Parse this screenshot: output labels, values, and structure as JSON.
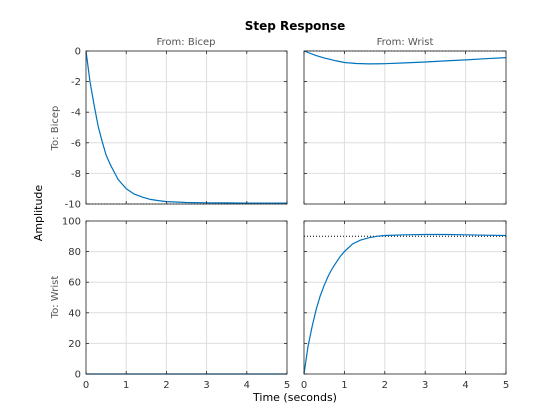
{
  "chart_data": {
    "type": "line",
    "title": "Step Response",
    "xlabel": "Time (seconds)",
    "ylabel": "Amplitude",
    "grid": true,
    "column_titles": [
      "From: Bicep",
      "From: Wrist"
    ],
    "row_titles": [
      "To: Bicep",
      "To: Wrist"
    ],
    "xlim": [
      0,
      5
    ],
    "xticks": [
      0,
      1,
      2,
      3,
      4,
      5
    ],
    "rows": [
      {
        "ylim": [
          -10,
          0
        ],
        "yticks": [
          -10,
          -8,
          -6,
          -4,
          -2,
          0
        ]
      },
      {
        "ylim": [
          0,
          100
        ],
        "yticks": [
          0,
          20,
          40,
          60,
          80,
          100
        ]
      }
    ],
    "line_color": "#0072bd",
    "panels": [
      {
        "row": 0,
        "col": 0,
        "x": [
          0,
          0.1,
          0.2,
          0.3,
          0.4,
          0.5,
          0.6,
          0.7,
          0.8,
          0.9,
          1.0,
          1.2,
          1.4,
          1.6,
          1.8,
          2.0,
          2.5,
          3.0,
          3.5,
          4.0,
          4.5,
          5.0
        ],
        "y": [
          0,
          -2.0,
          -3.5,
          -4.9,
          -5.9,
          -6.8,
          -7.4,
          -7.9,
          -8.4,
          -8.7,
          -9.0,
          -9.35,
          -9.55,
          -9.7,
          -9.78,
          -9.84,
          -9.9,
          -9.92,
          -9.93,
          -9.94,
          -9.94,
          -9.94
        ],
        "steady_state": -10
      },
      {
        "row": 0,
        "col": 1,
        "x": [
          0,
          0.1,
          0.3,
          0.5,
          0.8,
          1.0,
          1.3,
          1.6,
          2.0,
          2.5,
          3.0,
          3.5,
          4.0,
          4.5,
          5.0
        ],
        "y": [
          0,
          -0.1,
          -0.3,
          -0.45,
          -0.65,
          -0.75,
          -0.82,
          -0.84,
          -0.83,
          -0.78,
          -0.72,
          -0.65,
          -0.58,
          -0.5,
          -0.43
        ],
        "steady_state": 0
      },
      {
        "row": 1,
        "col": 0,
        "x": [
          0,
          1,
          2,
          3,
          4,
          5
        ],
        "y": [
          0,
          0,
          0,
          0,
          0,
          0
        ]
      },
      {
        "row": 1,
        "col": 1,
        "x": [
          0,
          0.1,
          0.2,
          0.3,
          0.4,
          0.5,
          0.6,
          0.7,
          0.8,
          0.9,
          1.0,
          1.2,
          1.4,
          1.6,
          1.8,
          2.0,
          2.5,
          3.0,
          3.5,
          4.0,
          4.5,
          5.0
        ],
        "y": [
          0,
          18,
          31,
          42,
          51,
          58,
          64,
          69,
          73,
          77,
          80,
          85,
          87.5,
          89,
          90,
          90.5,
          91,
          91.2,
          91.2,
          91,
          90.7,
          90.5
        ],
        "steady_state": 90
      }
    ]
  }
}
